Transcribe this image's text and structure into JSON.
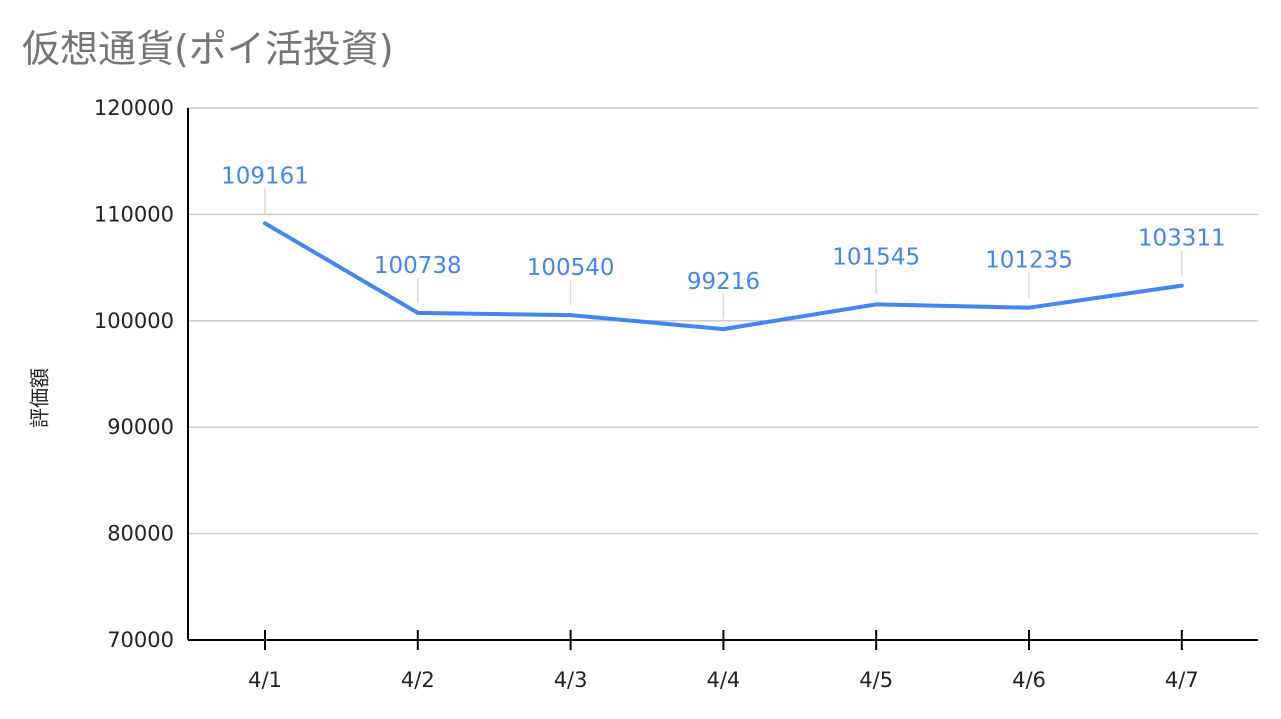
{
  "chart_data": {
    "type": "line",
    "title": "仮想通貨(ポイ活投資)",
    "xlabel": "",
    "ylabel": "評価額",
    "categories": [
      "4/1",
      "4/2",
      "4/3",
      "4/4",
      "4/5",
      "4/6",
      "4/7"
    ],
    "series": [
      {
        "values": [
          109161,
          100738,
          100540,
          99216,
          101545,
          101235,
          103311
        ]
      }
    ],
    "data_labels": [
      "109161",
      "100738",
      "100540",
      "99216",
      "101545",
      "101235",
      "103311"
    ],
    "ylim": [
      70000,
      120000
    ],
    "yticks": [
      70000,
      80000,
      90000,
      100000,
      110000,
      120000
    ],
    "ytick_labels": [
      "70000",
      "80000",
      "90000",
      "100000",
      "110000",
      "120000"
    ],
    "grid": true,
    "legend": "none",
    "colors": {
      "line": "#4285f4",
      "label": "#4285f4",
      "grid": "#cccccc",
      "axis": "#000000",
      "title": "#757575"
    }
  }
}
